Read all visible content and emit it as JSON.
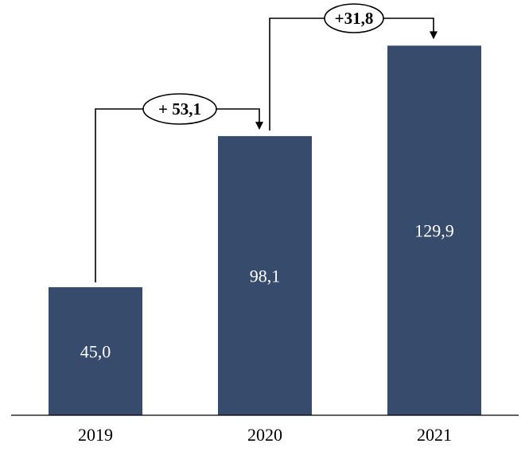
{
  "chart_data": {
    "type": "bar",
    "categories": [
      "2019",
      "2020",
      "2021"
    ],
    "values": [
      45.0,
      98.1,
      129.9
    ],
    "value_labels": [
      "45,0",
      "98,1",
      "129,9"
    ],
    "title": "",
    "xlabel": "",
    "ylabel": "",
    "ylim": [
      0,
      130
    ],
    "grid": false,
    "bar_color": "#374b6c",
    "annotations": [
      {
        "from": "2019",
        "to": "2020",
        "label": "+ 53,1"
      },
      {
        "from": "2020",
        "to": "2021",
        "label": "+31,8"
      }
    ]
  }
}
